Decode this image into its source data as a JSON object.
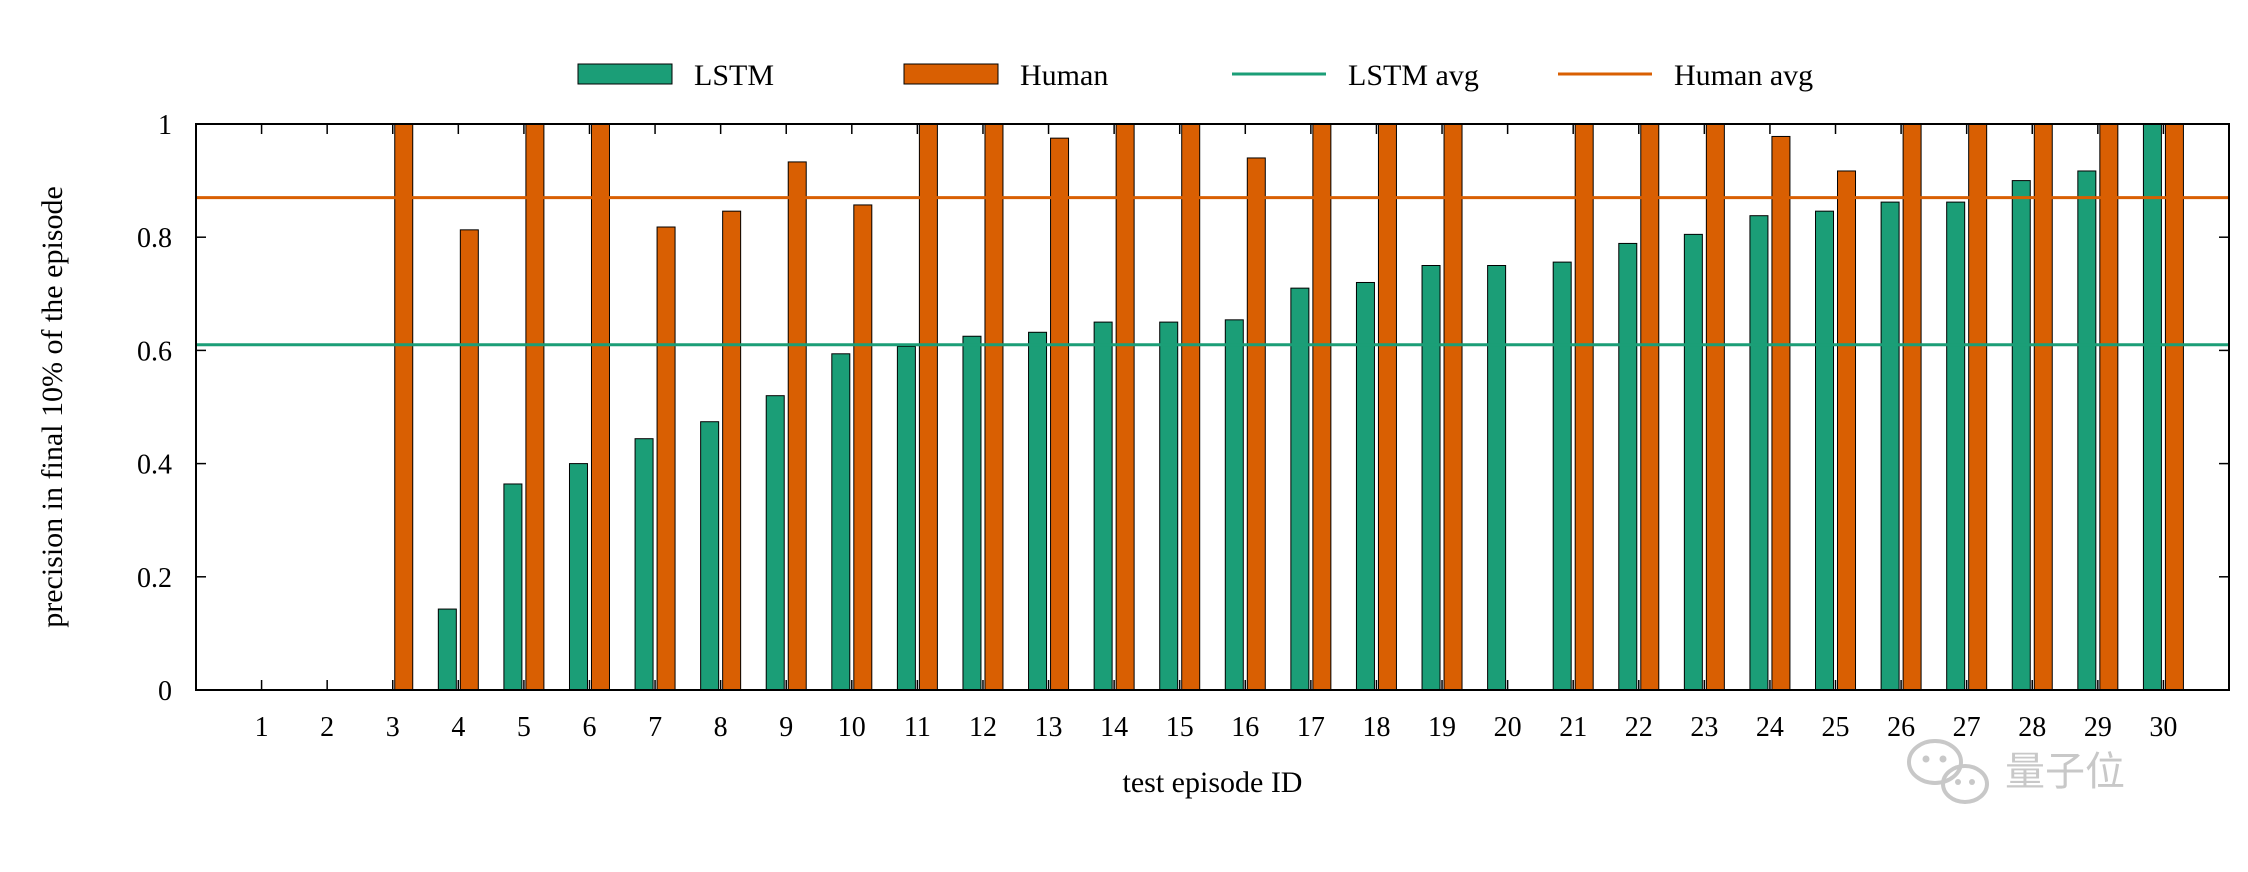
{
  "chart_data": {
    "type": "bar",
    "title": "",
    "xlabel": "test episode ID",
    "ylabel": "precision in final 10% of the episode",
    "ylim": [
      0,
      1
    ],
    "yticks": [
      0,
      0.2,
      0.4,
      0.6,
      0.8,
      1
    ],
    "ytick_labels": [
      "0",
      "0.2",
      "0.4",
      "0.6",
      "0.8",
      "1"
    ],
    "categories": [
      "1",
      "2",
      "3",
      "4",
      "5",
      "6",
      "7",
      "8",
      "9",
      "10",
      "11",
      "12",
      "13",
      "14",
      "15",
      "16",
      "17",
      "18",
      "19",
      "20",
      "21",
      "22",
      "23",
      "24",
      "25",
      "26",
      "27",
      "28",
      "29",
      "30"
    ],
    "series": [
      {
        "name": "LSTM",
        "color": "#1b9e77",
        "values": [
          0,
          0,
          0,
          0.143,
          0.364,
          0.4,
          0.444,
          0.474,
          0.52,
          0.594,
          0.607,
          0.625,
          0.632,
          0.65,
          0.65,
          0.654,
          0.71,
          0.72,
          0.75,
          0.75,
          0.756,
          0.789,
          0.805,
          0.838,
          0.846,
          0.862,
          0.862,
          0.9,
          0.917,
          1.0
        ]
      },
      {
        "name": "Human",
        "color": "#d95f02",
        "values": [
          0,
          0,
          1.0,
          0.813,
          1.0,
          1.0,
          0.818,
          0.846,
          0.933,
          0.857,
          1.0,
          1.0,
          0.975,
          1.0,
          1.0,
          0.94,
          1.0,
          1.0,
          1.0,
          0,
          1.0,
          1.0,
          1.0,
          0.978,
          0.917,
          1.0,
          1.0,
          1.0,
          1.0,
          1.0
        ]
      }
    ],
    "hlines": [
      {
        "name": "LSTM avg",
        "value": 0.61,
        "color": "#1b9e77"
      },
      {
        "name": "Human avg",
        "value": 0.87,
        "color": "#d95f02"
      }
    ],
    "grid": false,
    "legend_position": "top"
  },
  "watermark": {
    "text": "量子位",
    "icon": "wechat-icon"
  }
}
